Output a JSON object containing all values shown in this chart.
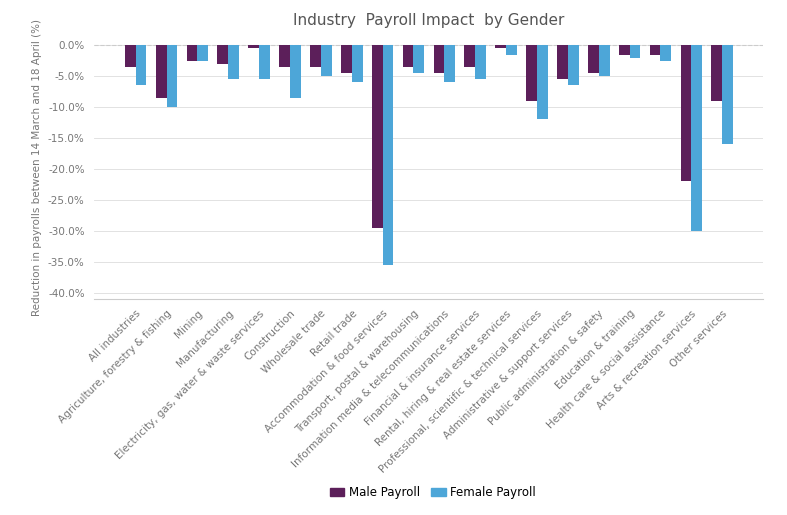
{
  "title": "Industry  Payroll Impact  by Gender",
  "ylabel": "Reduction in payrolls between 14 March and 18 April (%)",
  "categories": [
    "All industries",
    "Agriculture, forestry & fishing",
    "Mining",
    "Manufacturing",
    "Electricity, gas, water & waste services",
    "Construction",
    "Wholesale trade",
    "Retail trade",
    "Accommodation & food services",
    "Transport, postal & warehousing",
    "Information media & telecommunications",
    "Financial & insurance services",
    "Rental, hiring & real estate services",
    "Professional, scientific & technical services",
    "Administrative & support services",
    "Public administration & safety",
    "Education & training",
    "Health care & social assistance",
    "Arts & recreation services",
    "Other services"
  ],
  "male": [
    -3.5,
    -8.5,
    -2.5,
    -3.0,
    -0.5,
    -3.5,
    -3.5,
    -4.5,
    -29.5,
    -3.5,
    -4.5,
    -3.5,
    -0.5,
    -9.0,
    -5.5,
    -4.5,
    -1.5,
    -1.5,
    -22.0,
    -9.0
  ],
  "female": [
    -6.5,
    -10.0,
    -2.5,
    -5.5,
    -5.5,
    -8.5,
    -5.0,
    -6.0,
    -35.5,
    -4.5,
    -6.0,
    -5.5,
    -1.5,
    -12.0,
    -6.5,
    -5.0,
    -2.0,
    -2.5,
    -30.0,
    -16.0
  ],
  "male_color": "#5c1f5a",
  "female_color": "#4da6d8",
  "ylim": [
    -41.0,
    1.5
  ],
  "yticks": [
    0.0,
    -5.0,
    -10.0,
    -15.0,
    -20.0,
    -25.0,
    -30.0,
    -35.0,
    -40.0
  ],
  "ytick_labels": [
    "0.0%",
    "-5.0%",
    "-10.0%",
    "-15.0%",
    "-20.0%",
    "-25.0%",
    "-30.0%",
    "-35.0%",
    "-40.0%"
  ],
  "legend_labels": [
    "Male Payroll",
    "Female Payroll"
  ],
  "bar_width": 0.35,
  "title_fontsize": 11,
  "label_fontsize": 7.5,
  "tick_fontsize": 7.5
}
